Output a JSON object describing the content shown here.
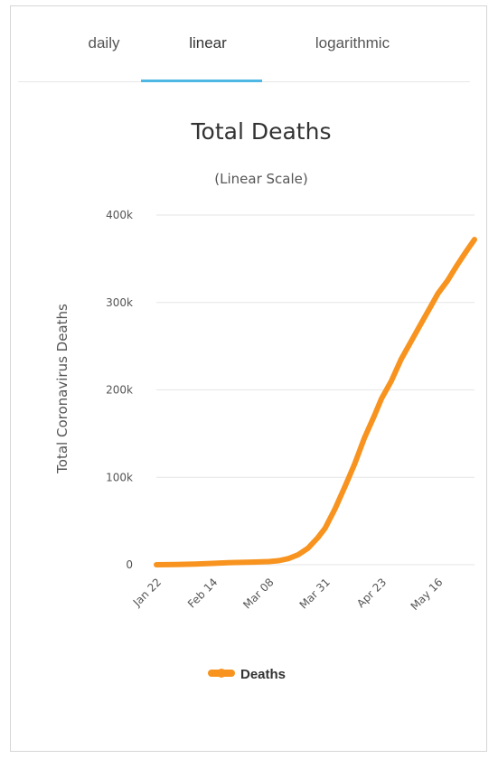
{
  "tabs": [
    {
      "label": "daily"
    },
    {
      "label": "linear"
    },
    {
      "label": "logarithmic"
    }
  ],
  "active_tab": "linear",
  "colors": {
    "series": "#f7931e",
    "tab_accent": "#4fb7e4",
    "grid": "#e6e6e6"
  },
  "chart_data": {
    "type": "line",
    "title": "Total Deaths",
    "subtitle": "(Linear Scale)",
    "ylabel": "Total Coronavirus Deaths",
    "xlabel": "",
    "ylim": [
      0,
      400000
    ],
    "y_ticks": [
      "0",
      "100k",
      "200k",
      "300k",
      "400k"
    ],
    "x_ticks": [
      "Jan 22",
      "Feb 14",
      "Mar 08",
      "Mar 31",
      "Apr 23",
      "May 16"
    ],
    "grid": true,
    "legend": {
      "position": "bottom-center",
      "entries": [
        "Deaths"
      ]
    },
    "series": [
      {
        "name": "Deaths",
        "color": "#f7931e",
        "x": [
          "Jan 22",
          "Jan 30",
          "Feb 07",
          "Feb 14",
          "Feb 22",
          "Mar 01",
          "Mar 08",
          "Mar 12",
          "Mar 16",
          "Mar 20",
          "Mar 24",
          "Mar 28",
          "Mar 31",
          "Apr 04",
          "Apr 08",
          "Apr 12",
          "Apr 16",
          "Apr 20",
          "Apr 23",
          "Apr 27",
          "May 01",
          "May 05",
          "May 09",
          "May 13",
          "May 16",
          "May 20",
          "May 24",
          "May 28",
          "May 31"
        ],
        "values": [
          17,
          200,
          700,
          1500,
          2500,
          3000,
          3600,
          4600,
          7000,
          11500,
          19000,
          31000,
          42000,
          64000,
          89000,
          115000,
          145000,
          170000,
          190000,
          210000,
          235000,
          255000,
          275000,
          295000,
          310000,
          325000,
          343000,
          360000,
          372000
        ]
      }
    ]
  }
}
